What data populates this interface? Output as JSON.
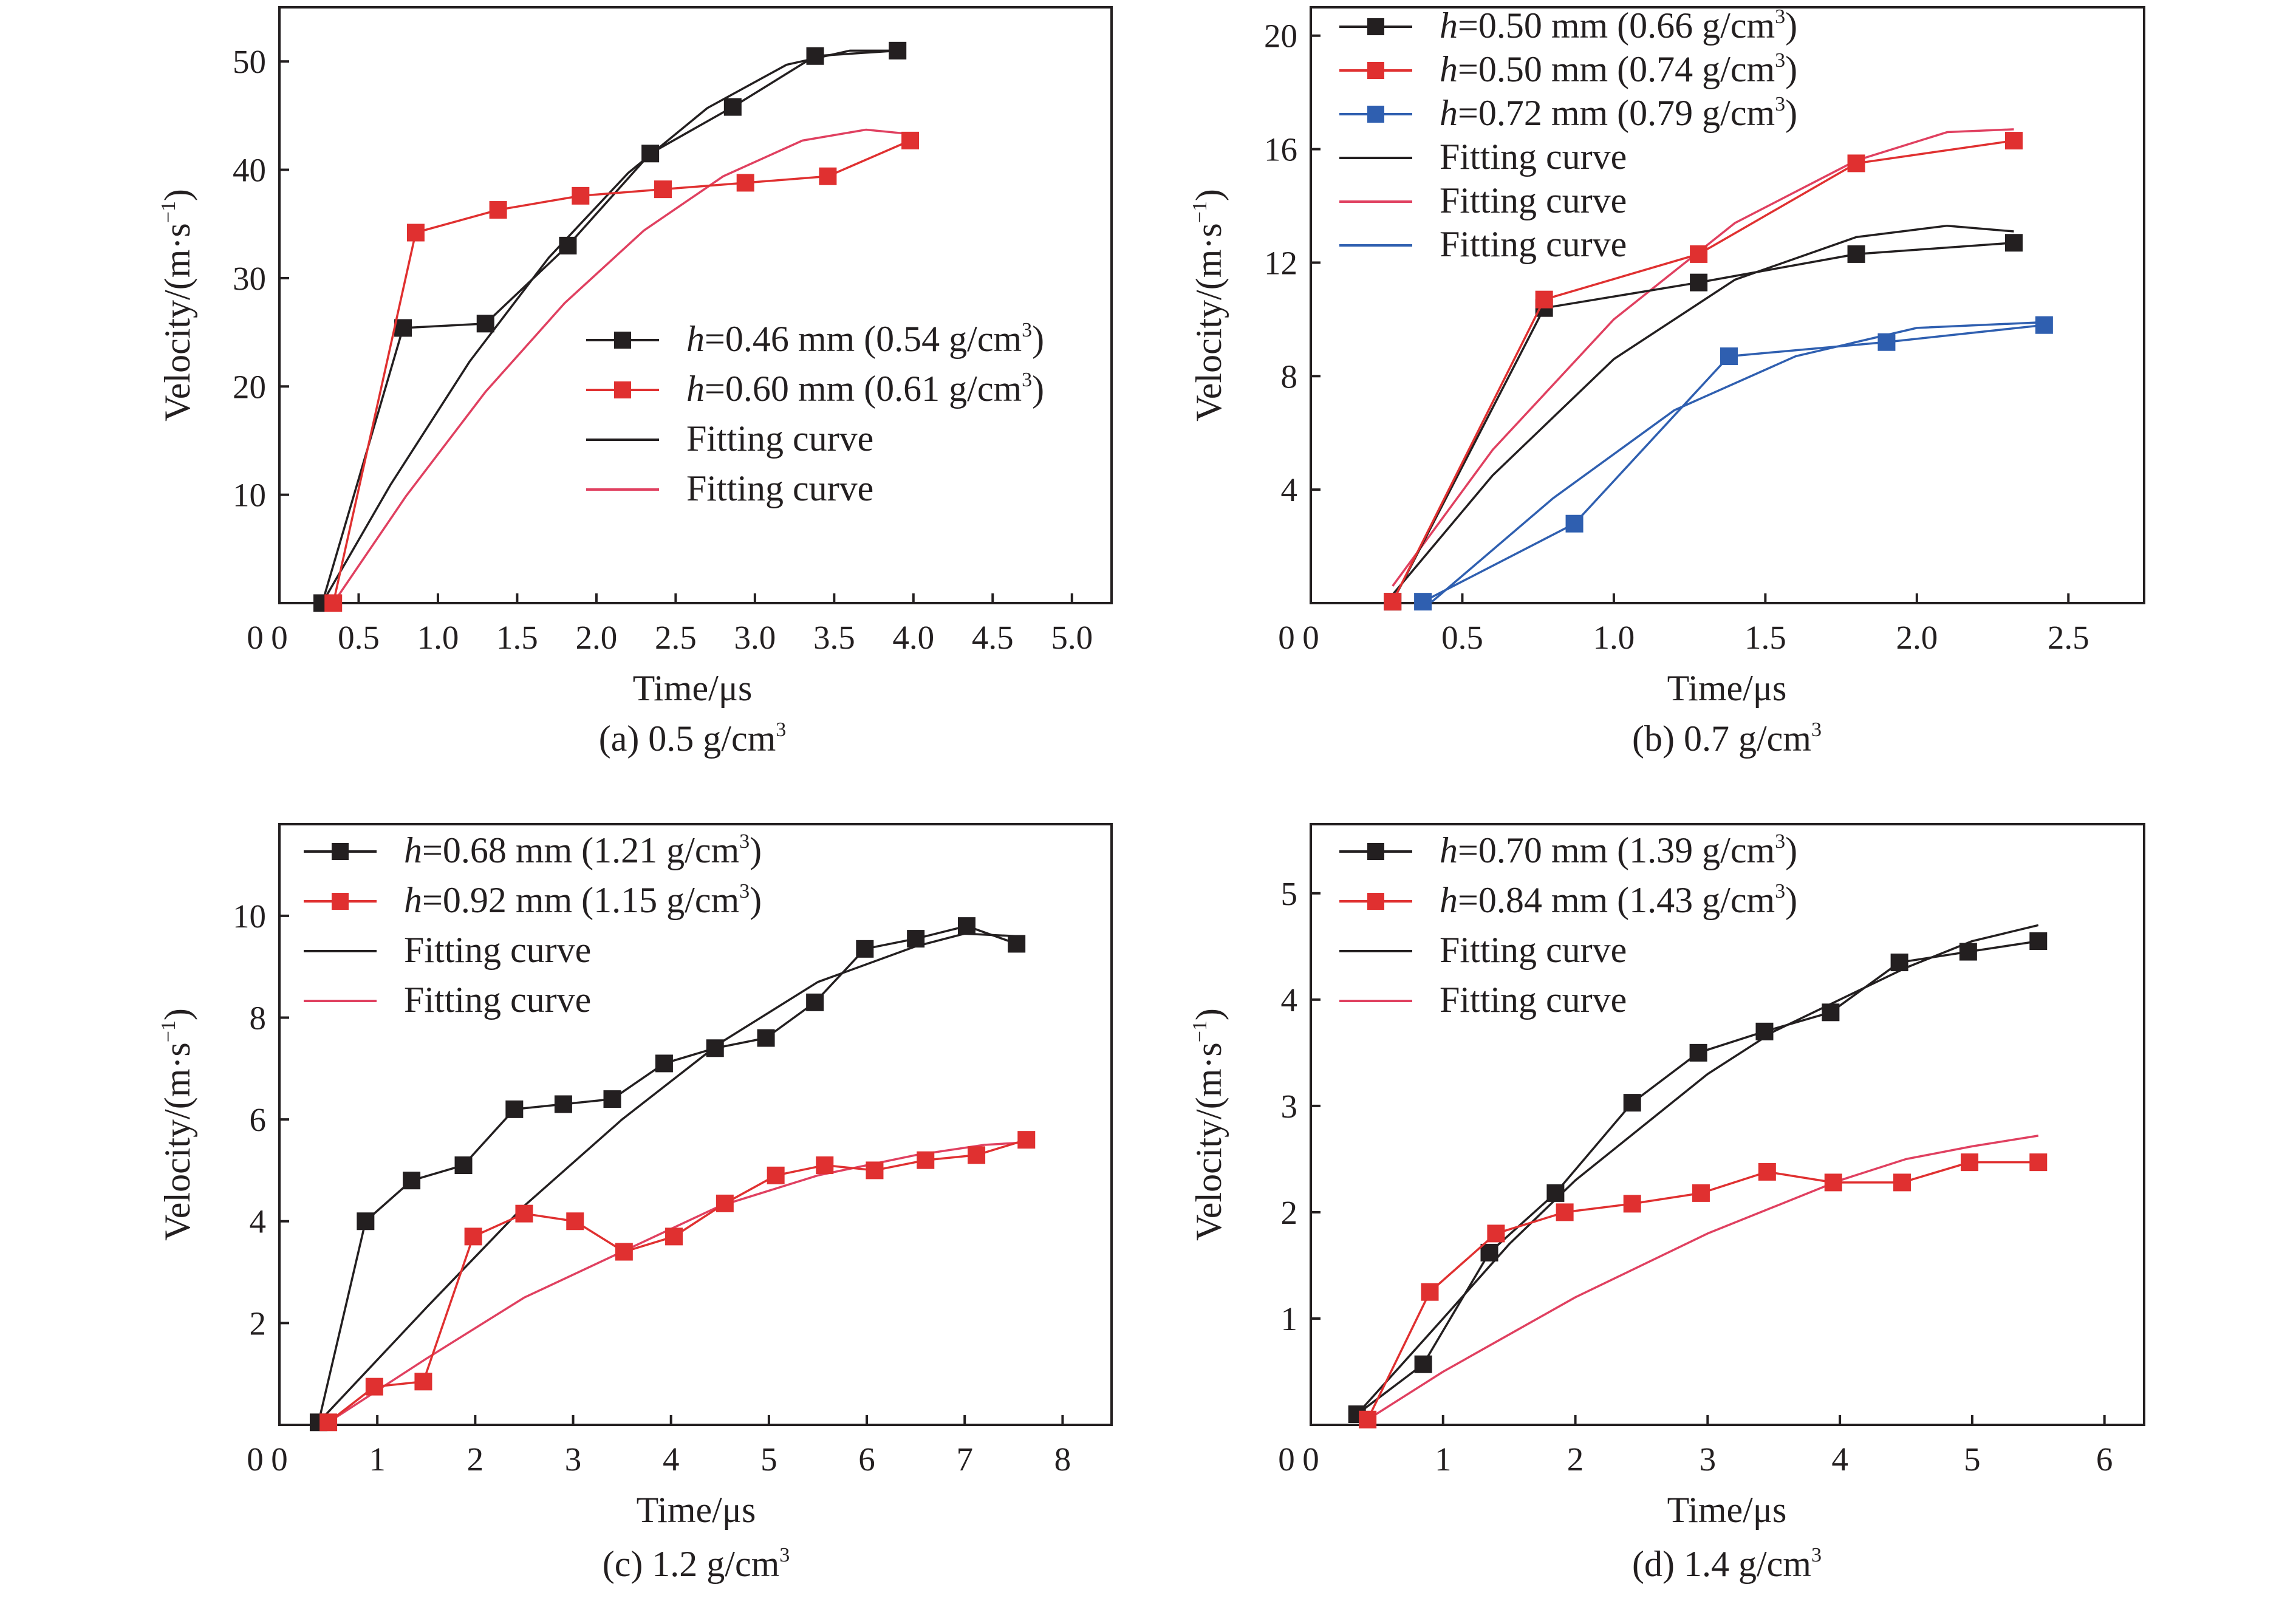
{
  "chart_data": [
    {
      "type": "line",
      "caption": "(a) 0.5 g/cm",
      "caption_sup": "3",
      "xlabel": "Time/μs",
      "ylabel": "Velocity/(m·s",
      "ylabel_sup": "−1",
      "ylabel_end": ")",
      "xlim": [
        0,
        5.25
      ],
      "ylim": [
        0,
        55
      ],
      "xticks": [
        0,
        0.5,
        1.0,
        1.5,
        2.0,
        2.5,
        3.0,
        3.5,
        4.0,
        4.5,
        5.0
      ],
      "xtick_labels": [
        "0",
        "0.5",
        "1.0",
        "1.5",
        "2.0",
        "2.5",
        "3.0",
        "3.5",
        "4.0",
        "4.5",
        "5.0"
      ],
      "yticks": [
        10,
        20,
        30,
        40,
        50
      ],
      "ytick_labels": [
        "10",
        "20",
        "30",
        "40",
        "50"
      ],
      "legend_position": "center-right",
      "series": [
        {
          "label_italic": "h",
          "label_rest": "=0.46 mm (0.54 g/cm",
          "label_sup": "3",
          "label_end": ")",
          "color": "#231f20",
          "x": [
            0.27,
            0.78,
            1.3,
            1.82,
            2.34,
            2.86,
            3.38,
            3.9
          ],
          "y": [
            0,
            25.4,
            25.8,
            33.0,
            41.5,
            45.8,
            50.5,
            51.0
          ]
        },
        {
          "label_italic": "h",
          "label_rest": "=0.60 mm (0.61 g/cm",
          "label_sup": "3",
          "label_end": ")",
          "color": "#e03030",
          "x": [
            0.34,
            0.86,
            1.38,
            1.9,
            2.42,
            2.94,
            3.46,
            3.98
          ],
          "y": [
            0,
            34.2,
            36.3,
            37.6,
            38.2,
            38.8,
            39.4,
            42.7
          ]
        }
      ],
      "fits": [
        {
          "label": "Fitting curve",
          "color": "#231f20",
          "x": [
            0.27,
            0.7,
            1.2,
            1.7,
            2.2,
            2.7,
            3.2,
            3.6,
            3.85
          ],
          "y": [
            0,
            10.9,
            22.3,
            31.9,
            39.7,
            45.7,
            49.7,
            51.0,
            51.0
          ]
        },
        {
          "label": "Fitting curve",
          "color": "#e04060",
          "x": [
            0.34,
            0.8,
            1.3,
            1.8,
            2.3,
            2.8,
            3.3,
            3.7,
            3.98
          ],
          "y": [
            0,
            9.9,
            19.5,
            27.7,
            34.4,
            39.4,
            42.7,
            43.7,
            43.3
          ]
        }
      ]
    },
    {
      "type": "line",
      "caption": "(b) 0.7 g/cm",
      "caption_sup": "3",
      "xlabel": "Time/μs",
      "ylabel": "Velocity/(m·s",
      "ylabel_sup": "−1",
      "ylabel_end": ")",
      "xlim": [
        0,
        2.75
      ],
      "ylim": [
        0,
        21
      ],
      "xticks": [
        0,
        0.5,
        1.0,
        1.5,
        2.0,
        2.5
      ],
      "xtick_labels": [
        "0",
        "0.5",
        "1.0",
        "1.5",
        "2.0",
        "2.5"
      ],
      "yticks": [
        4,
        8,
        12,
        16,
        20
      ],
      "ytick_labels": [
        "4",
        "8",
        "12",
        "16",
        "20"
      ],
      "legend_position": "top-left",
      "series": [
        {
          "label_italic": "h",
          "label_rest": "=0.50 mm (0.66 g/cm",
          "label_sup": "3",
          "label_end": ")",
          "color": "#231f20",
          "x": [
            0.27,
            0.77,
            1.28,
            1.8,
            2.32
          ],
          "y": [
            0.05,
            10.4,
            11.3,
            12.3,
            12.7
          ]
        },
        {
          "label_italic": "h",
          "label_rest": "=0.50 mm (0.74 g/cm",
          "label_sup": "3",
          "label_end": ")",
          "color": "#e03030",
          "x": [
            0.27,
            0.77,
            1.28,
            1.8,
            2.32
          ],
          "y": [
            0.05,
            10.7,
            12.3,
            15.5,
            16.3
          ]
        },
        {
          "label_italic": "h",
          "label_rest": "=0.72 mm (0.79 g/cm",
          "label_sup": "3",
          "label_end": ")",
          "color": "#2f5fb0",
          "x": [
            0.37,
            0.87,
            1.38,
            1.9,
            2.42
          ],
          "y": [
            0.05,
            2.8,
            8.7,
            9.2,
            9.8
          ]
        }
      ],
      "fits": [
        {
          "label": "Fitting curve",
          "color": "#231f20",
          "x": [
            0.27,
            0.6,
            1.0,
            1.4,
            1.8,
            2.1,
            2.32
          ],
          "y": [
            0.3,
            4.5,
            8.6,
            11.4,
            12.9,
            13.3,
            13.1
          ]
        },
        {
          "label": "Fitting curve",
          "color": "#e04060",
          "x": [
            0.27,
            0.6,
            1.0,
            1.4,
            1.8,
            2.1,
            2.32
          ],
          "y": [
            0.6,
            5.4,
            10.0,
            13.4,
            15.6,
            16.6,
            16.7
          ]
        },
        {
          "label": "Fitting curve",
          "color": "#2f5fb0",
          "x": [
            0.4,
            0.8,
            1.2,
            1.6,
            2.0,
            2.42
          ],
          "y": [
            0.05,
            3.7,
            6.8,
            8.7,
            9.7,
            9.9
          ]
        }
      ]
    },
    {
      "type": "line",
      "caption": "(c) 1.2 g/cm",
      "caption_sup": "3",
      "xlabel": "Time/μs",
      "ylabel": "Velocity/(m·s",
      "ylabel_sup": "−1",
      "ylabel_end": ")",
      "xlim": [
        0,
        8.5
      ],
      "ylim": [
        0,
        11.8
      ],
      "xticks": [
        0,
        1,
        2,
        3,
        4,
        5,
        6,
        7,
        8
      ],
      "xtick_labels": [
        "0",
        "1",
        "2",
        "3",
        "4",
        "5",
        "6",
        "7",
        "8"
      ],
      "yticks": [
        2,
        4,
        6,
        8,
        10
      ],
      "ytick_labels": [
        "2",
        "4",
        "6",
        "8",
        "10"
      ],
      "legend_position": "top-left",
      "series": [
        {
          "label_italic": "h",
          "label_rest": "=0.68 mm (1.21 g/cm",
          "label_sup": "3",
          "label_end": ")",
          "color": "#231f20",
          "x": [
            0.4,
            0.88,
            1.35,
            1.88,
            2.4,
            2.9,
            3.4,
            3.93,
            4.45,
            4.97,
            5.47,
            5.98,
            6.5,
            7.02,
            7.53
          ],
          "y": [
            0.05,
            4.0,
            4.8,
            5.1,
            6.2,
            6.3,
            6.4,
            7.1,
            7.4,
            7.6,
            8.3,
            9.35,
            9.55,
            9.8,
            9.45
          ]
        },
        {
          "label_italic": "h",
          "label_rest": "=0.92 mm (1.15 g/cm",
          "label_sup": "3",
          "label_end": ")",
          "color": "#e03030",
          "x": [
            0.5,
            0.97,
            1.47,
            1.98,
            2.5,
            3.02,
            3.52,
            4.03,
            4.55,
            5.07,
            5.57,
            6.08,
            6.6,
            7.12,
            7.63
          ],
          "y": [
            0.05,
            0.75,
            0.85,
            3.7,
            4.15,
            4.0,
            3.4,
            3.7,
            4.35,
            4.9,
            5.1,
            5.0,
            5.2,
            5.3,
            5.6
          ]
        }
      ],
      "fits": [
        {
          "label": "Fitting curve",
          "color": "#231f20",
          "x": [
            0.4,
            1.5,
            2.5,
            3.5,
            4.5,
            5.5,
            6.5,
            7.0,
            7.53
          ],
          "y": [
            0.05,
            2.3,
            4.3,
            6.0,
            7.5,
            8.7,
            9.4,
            9.65,
            9.6
          ]
        },
        {
          "label": "Fitting curve",
          "color": "#e04060",
          "x": [
            0.5,
            1.5,
            2.5,
            3.5,
            4.5,
            5.5,
            6.5,
            7.2,
            7.63
          ],
          "y": [
            0.05,
            1.3,
            2.5,
            3.4,
            4.3,
            4.9,
            5.3,
            5.5,
            5.55
          ]
        }
      ]
    },
    {
      "type": "line",
      "caption": "(d) 1.4 g/cm",
      "caption_sup": "3",
      "xlabel": "Time/μs",
      "ylabel": "Velocity/(m·s",
      "ylabel_sup": "−1",
      "ylabel_end": ")",
      "xlim": [
        0,
        6.3
      ],
      "ylim": [
        0,
        5.65
      ],
      "xticks": [
        0,
        1,
        2,
        3,
        4,
        5,
        6
      ],
      "xtick_labels": [
        "0",
        "1",
        "2",
        "3",
        "4",
        "5",
        "6"
      ],
      "yticks": [
        1,
        2,
        3,
        4,
        5
      ],
      "ytick_labels": [
        "1",
        "2",
        "3",
        "4",
        "5"
      ],
      "legend_position": "top-left",
      "series": [
        {
          "label_italic": "h",
          "label_rest": "=0.70 mm (1.39 g/cm",
          "label_sup": "3",
          "label_end": ")",
          "color": "#231f20",
          "x": [
            0.35,
            0.85,
            1.35,
            1.85,
            2.43,
            2.93,
            3.43,
            3.93,
            4.45,
            4.97,
            5.5
          ],
          "y": [
            0.1,
            0.57,
            1.62,
            2.18,
            3.03,
            3.5,
            3.7,
            3.88,
            4.35,
            4.45,
            4.55
          ]
        },
        {
          "label_italic": "h",
          "label_rest": "=0.84 mm (1.43 g/cm",
          "label_sup": "3",
          "label_end": ")",
          "color": "#e03030",
          "x": [
            0.43,
            0.9,
            1.4,
            1.92,
            2.43,
            2.95,
            3.45,
            3.95,
            4.47,
            4.98,
            5.5
          ],
          "y": [
            0.05,
            1.25,
            1.8,
            2.0,
            2.08,
            2.18,
            2.38,
            2.28,
            2.28,
            2.47,
            2.47
          ]
        }
      ],
      "fits": [
        {
          "label": "Fitting curve",
          "color": "#231f20",
          "x": [
            0.35,
            1.0,
            1.5,
            2.0,
            2.5,
            3.0,
            3.5,
            4.0,
            4.5,
            5.0,
            5.5
          ],
          "y": [
            0.1,
            1.0,
            1.7,
            2.3,
            2.8,
            3.3,
            3.7,
            4.0,
            4.3,
            4.55,
            4.7
          ]
        },
        {
          "label": "Fitting curve",
          "color": "#e04060",
          "x": [
            0.43,
            1.0,
            1.5,
            2.0,
            2.5,
            3.0,
            3.5,
            4.0,
            4.5,
            5.0,
            5.5
          ],
          "y": [
            0.05,
            0.5,
            0.85,
            1.2,
            1.5,
            1.8,
            2.05,
            2.3,
            2.5,
            2.62,
            2.72
          ]
        }
      ]
    }
  ]
}
